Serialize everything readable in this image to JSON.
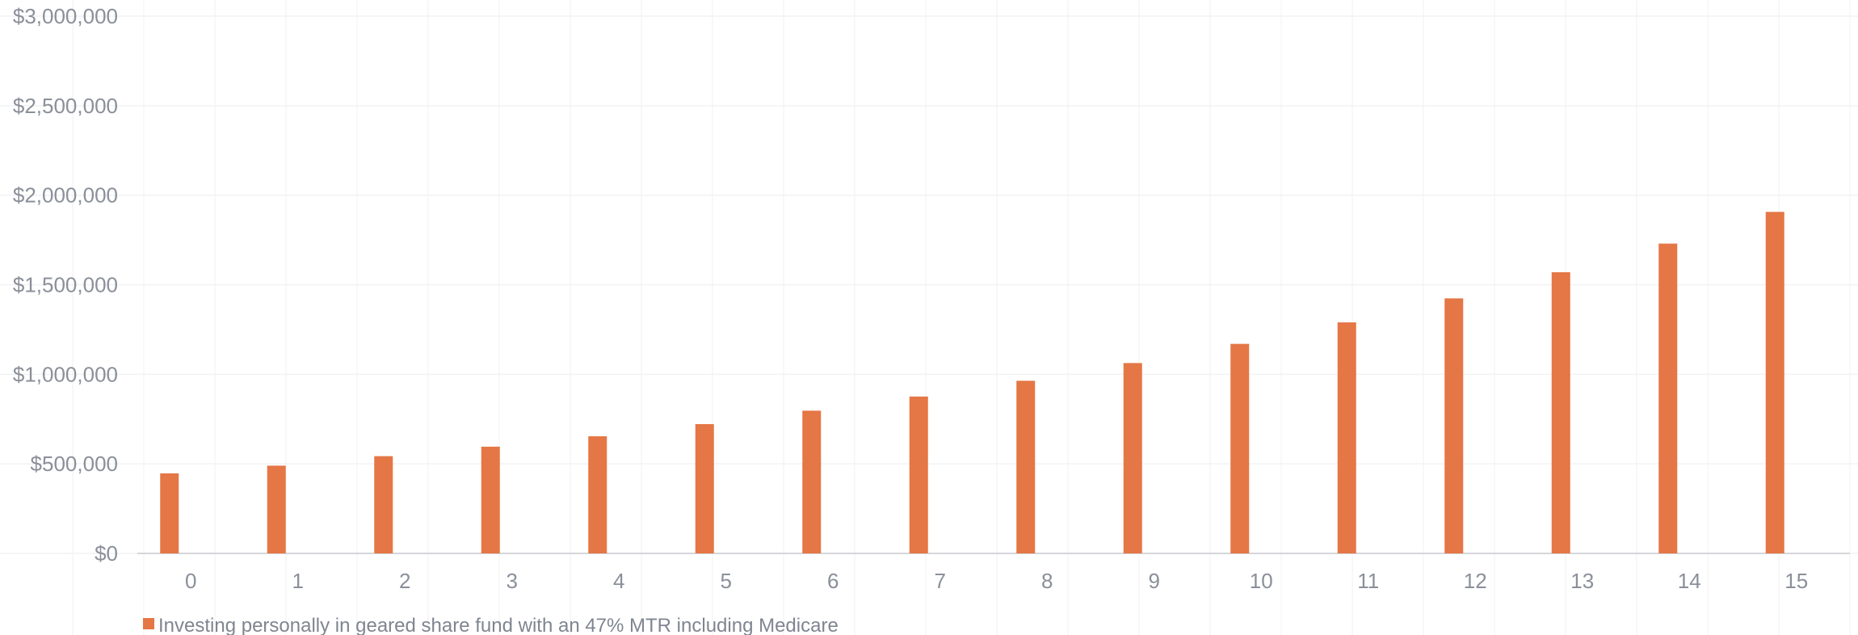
{
  "chart_data": {
    "type": "bar",
    "title": "",
    "xlabel": "",
    "ylabel": "",
    "ylim": [
      0,
      3000000
    ],
    "y_ticks": [
      "$0",
      "$500,000",
      "$1,000,000",
      "$1,500,000",
      "$2,000,000",
      "$2,500,000",
      "$3,000,000"
    ],
    "grid": true,
    "legend_position": "bottom-left",
    "categories": [
      "0",
      "1",
      "2",
      "3",
      "4",
      "5",
      "6",
      "7",
      "8",
      "9",
      "10",
      "11",
      "12",
      "13",
      "14",
      "15"
    ],
    "series": [
      {
        "name": "Investing personally in geared share fund with an 47% MTR including Medicare",
        "color": "#E57645",
        "values": [
          447000,
          490000,
          543000,
          596000,
          654000,
          722000,
          797000,
          876000,
          964000,
          1063000,
          1170000,
          1290000,
          1424000,
          1570000,
          1730000,
          1907000
        ]
      }
    ]
  }
}
